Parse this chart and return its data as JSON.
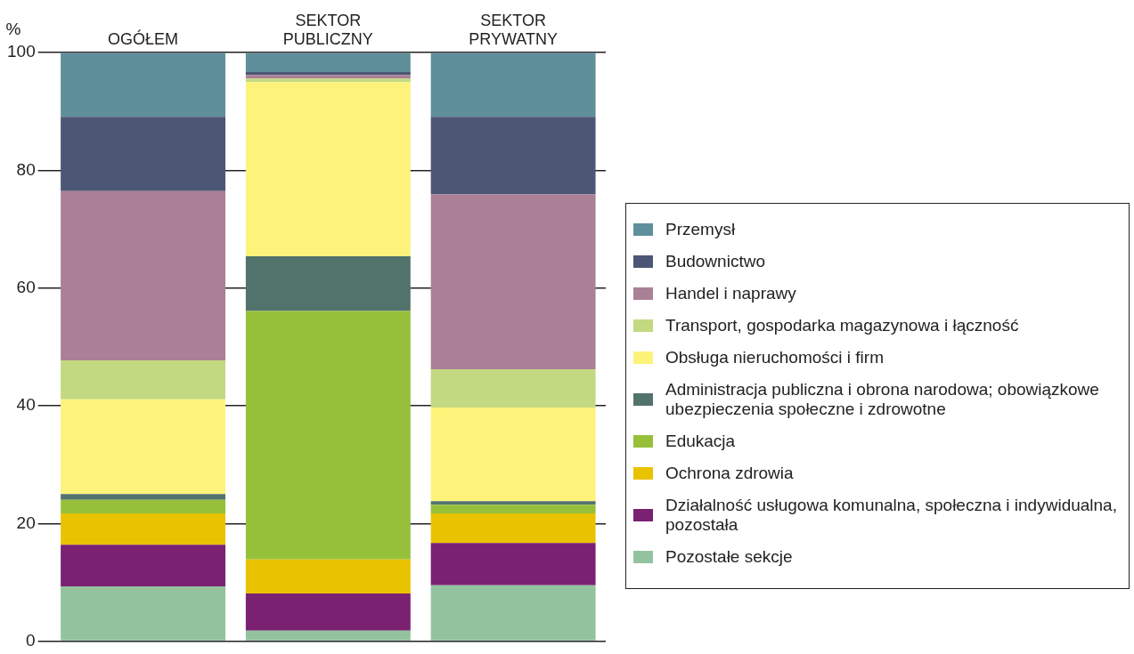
{
  "chart_data": {
    "type": "bar",
    "stacked": true,
    "ylabel": "%",
    "categories": [
      "OGÓŁEM",
      "SEKTOR PUBLICZNY",
      "SEKTOR PRYWATNY"
    ],
    "ylim": [
      0,
      100
    ],
    "yticks": [
      0,
      20,
      40,
      60,
      80,
      100
    ],
    "grid": "y",
    "legend": "right",
    "series": [
      {
        "name": "Pozostałe sekcje",
        "color": "#93c39e",
        "values": [
          9.3,
          1.8,
          9.5
        ]
      },
      {
        "name": "Działalność usługowa komunalna, społeczna i indywidualna, pozostała",
        "color": "#7a2172",
        "values": [
          7.1,
          6.3,
          7.2
        ]
      },
      {
        "name": "Ochrona zdrowia",
        "color": "#e9c200",
        "values": [
          5.3,
          5.8,
          5.0
        ]
      },
      {
        "name": "Edukacja",
        "color": "#97c03a",
        "values": [
          2.3,
          42.2,
          1.5
        ]
      },
      {
        "name": "Administracja publiczna i obrona narodowa; obowiązkowe ubezpieczenia społeczne i zdrowotne",
        "color": "#52736b",
        "values": [
          1.0,
          9.3,
          0.6
        ]
      },
      {
        "name": "Obsługa nieruchomości i firm",
        "color": "#fdf37a",
        "values": [
          16.1,
          29.6,
          15.9
        ]
      },
      {
        "name": "Transport, gospodarka magazynowa i łączność",
        "color": "#c2d982",
        "values": [
          6.6,
          0.6,
          6.5
        ]
      },
      {
        "name": "Handel i naprawy",
        "color": "#aa8096",
        "values": [
          28.8,
          0.6,
          29.7
        ]
      },
      {
        "name": "Budownictwo",
        "color": "#4d5674",
        "values": [
          12.6,
          0.5,
          13.2
        ]
      },
      {
        "name": "Przemysł",
        "color": "#5f8f9a",
        "values": [
          10.9,
          3.3,
          10.9
        ]
      }
    ]
  }
}
